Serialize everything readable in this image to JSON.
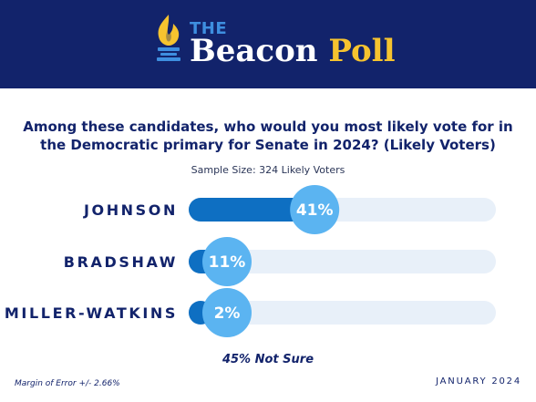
{
  "brand": {
    "prefix": "THE",
    "word": "Beacon",
    "accent": "Poll",
    "header_color": "#12236b",
    "accent_color": "#f6c32f",
    "logo_icon": "torch-icon"
  },
  "chart_data": {
    "type": "bar",
    "orientation": "horizontal",
    "title": "Among these candidates, who would you most likely vote for in the Democratic primary for Senate in 2024? (Likely Voters)",
    "subtitle": "Sample Size: 324 Likely Voters",
    "categories": [
      "JOHNSON",
      "BRADSHAW",
      "MILLER-WATKINS"
    ],
    "values": [
      41,
      11,
      2
    ],
    "value_labels": [
      "41%",
      "11%",
      "2%"
    ],
    "xlim": [
      0,
      100
    ],
    "bar_color": "#0e6fc2",
    "track_color": "#e8f0f9",
    "bubble_color": "#5bb4f1",
    "grid": false
  },
  "footer": {
    "not_sure": "45% Not Sure",
    "margin_of_error": "Margin of Error +/- 2.66%",
    "date": "JANUARY 2024"
  }
}
